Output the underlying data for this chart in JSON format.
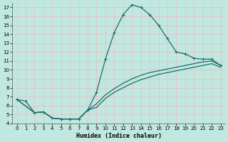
{
  "xlabel": "Humidex (Indice chaleur)",
  "xlim": [
    -0.5,
    23.5
  ],
  "ylim": [
    4,
    17.5
  ],
  "xticks": [
    0,
    1,
    2,
    3,
    4,
    5,
    6,
    7,
    8,
    9,
    10,
    11,
    12,
    13,
    14,
    15,
    16,
    17,
    18,
    19,
    20,
    21,
    22,
    23
  ],
  "yticks": [
    4,
    5,
    6,
    7,
    8,
    9,
    10,
    11,
    12,
    13,
    14,
    15,
    16,
    17
  ],
  "bg_color": "#c0e8e0",
  "line_color": "#1a6e6a",
  "grid_color": "#e8c0c0",
  "line1_x": [
    0,
    1,
    2,
    3,
    4,
    5,
    6,
    7,
    8,
    9,
    10,
    11,
    12,
    13,
    14,
    15,
    16,
    17,
    18,
    19,
    20,
    21,
    22,
    23
  ],
  "line1_y": [
    6.7,
    6.5,
    5.2,
    5.3,
    4.6,
    4.5,
    4.5,
    4.5,
    5.5,
    7.5,
    11.2,
    14.2,
    16.2,
    17.3,
    17.0,
    16.2,
    15.0,
    13.5,
    12.0,
    11.8,
    11.3,
    11.2,
    11.2,
    10.5
  ],
  "line2_x": [
    0,
    2,
    3,
    4,
    5,
    6,
    7,
    8,
    9,
    10,
    11,
    12,
    13,
    14,
    15,
    16,
    17,
    18,
    19,
    20,
    21,
    22,
    23
  ],
  "line2_y": [
    6.7,
    5.2,
    5.3,
    4.6,
    4.5,
    4.5,
    4.5,
    5.5,
    6.2,
    7.2,
    7.9,
    8.5,
    9.0,
    9.4,
    9.7,
    9.9,
    10.1,
    10.3,
    10.5,
    10.7,
    10.9,
    11.0,
    10.5
  ],
  "line3_x": [
    0,
    2,
    3,
    4,
    5,
    6,
    7,
    8,
    9,
    10,
    11,
    12,
    13,
    14,
    15,
    16,
    17,
    18,
    19,
    20,
    21,
    22,
    23
  ],
  "line3_y": [
    6.7,
    5.2,
    5.3,
    4.6,
    4.5,
    4.5,
    4.5,
    5.5,
    5.8,
    6.8,
    7.5,
    8.0,
    8.5,
    8.9,
    9.2,
    9.5,
    9.7,
    9.9,
    10.1,
    10.3,
    10.5,
    10.7,
    10.3
  ]
}
